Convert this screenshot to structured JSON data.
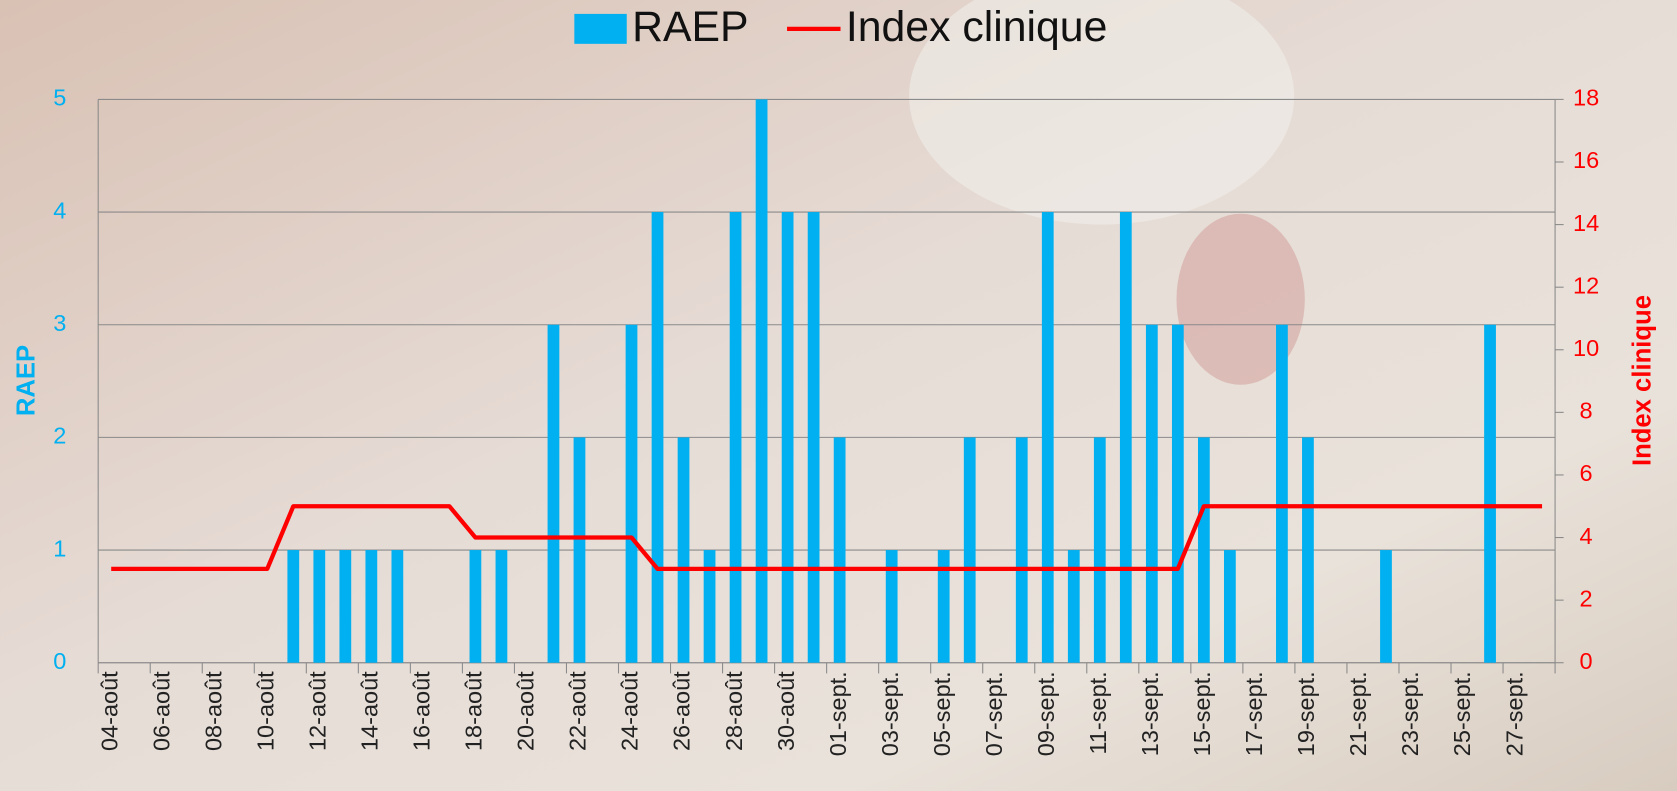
{
  "chart_data": {
    "type": "bar-line",
    "categories": [
      "04-août",
      null,
      "06-août",
      null,
      "08-août",
      null,
      "10-août",
      null,
      "12-août",
      null,
      "14-août",
      null,
      "16-août",
      null,
      "18-août",
      null,
      "20-août",
      null,
      "22-août",
      null,
      "24-août",
      null,
      "26-août",
      null,
      "28-août",
      null,
      "30-août",
      null,
      "01-sept.",
      null,
      "03-sept.",
      null,
      "05-sept.",
      null,
      "07-sept.",
      null,
      "09-sept.",
      null,
      "11-sept.",
      null,
      "13-sept.",
      null,
      "15-sept.",
      null,
      "17-sept.",
      null,
      "19-sept.",
      null,
      "21-sept.",
      null,
      "23-sept.",
      null,
      "25-sept.",
      null,
      "27-sept.",
      null
    ],
    "series": [
      {
        "name": "RAEP",
        "type": "bar",
        "color": "#00b0f0",
        "values": [
          0,
          0,
          0,
          0,
          0,
          0,
          0,
          1,
          1,
          1,
          1,
          1,
          0,
          0,
          1,
          1,
          0,
          3,
          2,
          0,
          3,
          4,
          2,
          1,
          4,
          5,
          4,
          4,
          2,
          0,
          1,
          0,
          1,
          2,
          0,
          2,
          4,
          1,
          2,
          4,
          3,
          3,
          2,
          1,
          0,
          3,
          2,
          0,
          0,
          1,
          0,
          0,
          0,
          3,
          0,
          0
        ]
      },
      {
        "name": "Index clinique",
        "type": "line",
        "axis": "y2",
        "color": "#ff0000",
        "values": [
          3,
          3,
          3,
          3,
          3,
          3,
          3,
          5,
          5,
          5,
          5,
          5,
          5,
          5,
          4,
          4,
          4,
          4,
          4,
          4,
          4,
          3,
          3,
          3,
          3,
          3,
          3,
          3,
          3,
          3,
          3,
          3,
          3,
          3,
          3,
          3,
          3,
          3,
          3,
          3,
          3,
          3,
          5,
          5,
          5,
          5,
          5,
          5,
          5,
          5,
          5,
          5,
          5,
          5,
          5,
          5
        ]
      }
    ],
    "ylabel": "RAEP",
    "y2label": "Index clinique",
    "ylim": [
      0,
      5
    ],
    "yticks": [
      0,
      1,
      2,
      3,
      4,
      5
    ],
    "y2lim": [
      0,
      18
    ],
    "y2ticks": [
      0,
      2,
      4,
      6,
      8,
      10,
      12,
      14,
      16,
      18
    ],
    "grid": true,
    "legend": "top"
  }
}
